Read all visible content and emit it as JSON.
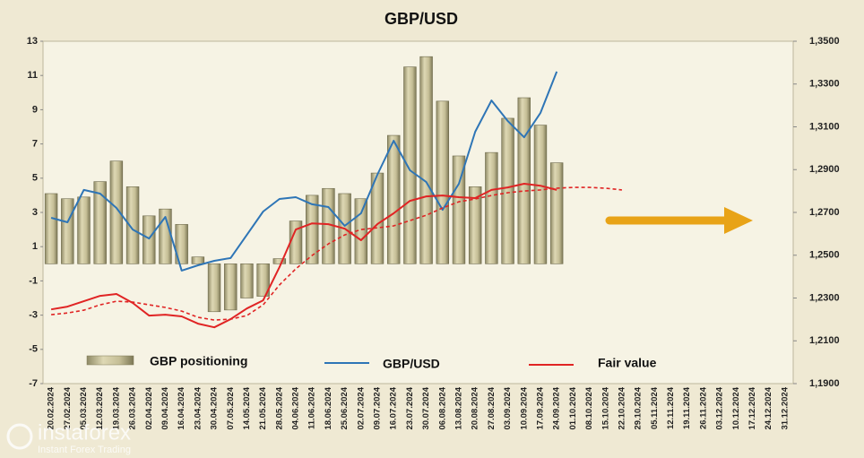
{
  "chart_data": {
    "type": "bar",
    "title": "GBP/USD",
    "categories": [
      "20.02.2024",
      "27.02.2024",
      "05.03.2024",
      "12.03.2024",
      "19.03.2024",
      "26.03.2024",
      "02.04.2024",
      "09.04.2024",
      "16.04.2024",
      "23.04.2024",
      "30.04.2024",
      "07.05.2024",
      "14.05.2024",
      "21.05.2024",
      "28.05.2024",
      "04.06.2024",
      "11.06.2024",
      "18.06.2024",
      "25.06.2024",
      "02.07.2024",
      "09.07.2024",
      "16.07.2024",
      "23.07.2024",
      "30.07.2024",
      "06.08.2024",
      "13.08.2024",
      "20.08.2024",
      "27.08.2024",
      "03.09.2024",
      "10.09.2024",
      "17.09.2024",
      "24.09.2024",
      "01.10.2024",
      "08.10.2024",
      "15.10.2024",
      "22.10.2024",
      "29.10.2024",
      "05.11.2024",
      "12.11.2024",
      "19.11.2024",
      "26.11.2024",
      "03.12.2024",
      "10.12.2024",
      "17.12.2024",
      "24.12.2024",
      "31.12.2024"
    ],
    "series": [
      {
        "name": "GBP positioning",
        "type": "bar",
        "color": "#c9c29b",
        "values": [
          4.1,
          3.8,
          3.9,
          4.8,
          6.0,
          4.5,
          2.8,
          3.2,
          2.3,
          0.4,
          -2.8,
          -2.7,
          -2.0,
          -1.9,
          0.3,
          2.5,
          4.0,
          4.4,
          4.1,
          3.8,
          5.3,
          7.5,
          11.5,
          12.1,
          9.5,
          6.3,
          4.5,
          6.5,
          8.5,
          9.7,
          8.1,
          5.9,
          null,
          null,
          null,
          null,
          null,
          null,
          null,
          null,
          null,
          null,
          null,
          null,
          null,
          null
        ]
      },
      {
        "name": "GBP/USD",
        "type": "line",
        "axis": "y2",
        "color": "#2e75b6",
        "values": [
          1.2675,
          1.2654,
          1.2805,
          1.2788,
          1.2721,
          1.262,
          1.2578,
          1.2679,
          1.2428,
          1.2453,
          1.2474,
          1.2487,
          1.2595,
          1.2704,
          1.2763,
          1.2771,
          1.2738,
          1.2725,
          1.2637,
          1.2696,
          1.2876,
          1.3035,
          1.2897,
          1.2842,
          1.2712,
          1.2834,
          1.3077,
          1.3223,
          1.3127,
          1.3051,
          1.3165,
          1.3358,
          null,
          null,
          null,
          null,
          null,
          null,
          null,
          null,
          null,
          null,
          null,
          null,
          null,
          null
        ]
      },
      {
        "name": "Fair value",
        "type": "line",
        "axis": "y2",
        "color": "#e02424",
        "values": [
          1.2247,
          1.226,
          1.2285,
          1.231,
          1.2319,
          1.2277,
          1.2218,
          1.2222,
          1.2214,
          1.218,
          1.2163,
          1.2201,
          1.2251,
          1.2289,
          1.2444,
          1.262,
          1.2649,
          1.2645,
          1.2624,
          1.257,
          1.2645,
          1.2696,
          1.2754,
          1.2775,
          1.2779,
          1.2771,
          1.2767,
          1.2805,
          1.2817,
          1.2834,
          1.2825,
          1.2805,
          null,
          null,
          null,
          null,
          null,
          null,
          null,
          null,
          null,
          null,
          null,
          null,
          null,
          null
        ]
      },
      {
        "type": "line",
        "axis": "y2",
        "color": "#e02424",
        "dashed": true,
        "values": [
          1.2222,
          1.223,
          1.2243,
          1.2268,
          1.2285,
          1.2281,
          1.2268,
          1.2256,
          1.2239,
          1.221,
          1.2197,
          1.2201,
          1.2218,
          1.2268,
          1.2361,
          1.2436,
          1.2499,
          1.2553,
          1.2595,
          1.262,
          1.2628,
          1.2637,
          1.2662,
          1.2687,
          1.2721,
          1.275,
          1.2763,
          1.2779,
          1.2792,
          1.28,
          1.2805,
          1.2813,
          1.2817,
          1.2817,
          1.2813,
          1.2805,
          null,
          null,
          null,
          null,
          null,
          null,
          null,
          null,
          null,
          null
        ]
      }
    ],
    "ylim": [
      -7,
      13
    ],
    "yticks": [
      -7,
      -5,
      -3,
      -1,
      1,
      3,
      5,
      7,
      9,
      11,
      13
    ],
    "y2lim": [
      1.19,
      1.35
    ],
    "y2ticks": [
      {
        "value": 1.19,
        "label": "1,1900"
      },
      {
        "value": 1.21,
        "label": "1,2100"
      },
      {
        "value": 1.23,
        "label": "1,2300"
      },
      {
        "value": 1.25,
        "label": "1,2500"
      },
      {
        "value": 1.27,
        "label": "1,2700"
      },
      {
        "value": 1.29,
        "label": "1,2900"
      },
      {
        "value": 1.31,
        "label": "1,3100"
      },
      {
        "value": 1.33,
        "label": "1,3300"
      },
      {
        "value": 1.35,
        "label": "1,3500"
      }
    ],
    "grid": false
  },
  "watermark": {
    "brand": "instaforex",
    "tagline": "Instant Forex Trading"
  }
}
